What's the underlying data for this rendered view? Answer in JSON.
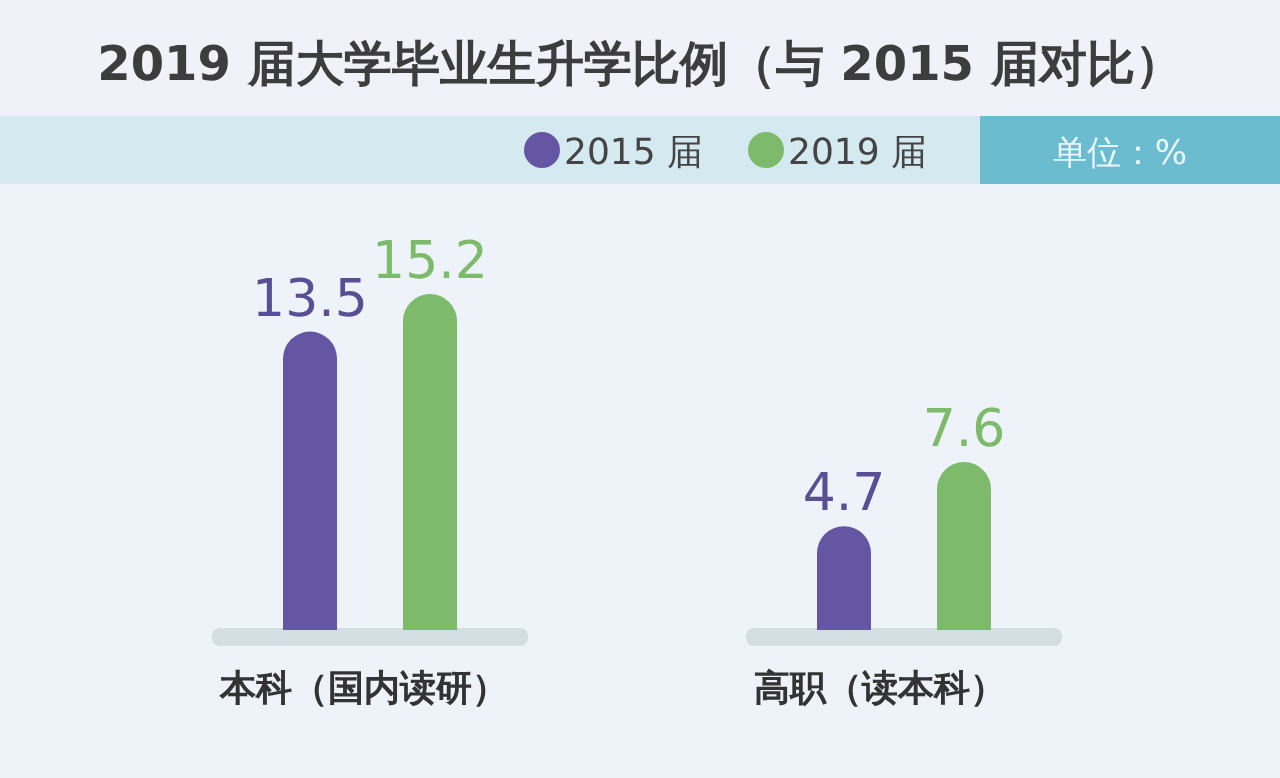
{
  "chart_data": {
    "type": "bar",
    "title": "2019 届大学毕业生升学比例（与 2015 届对比）",
    "categories": [
      "本科（国内读研）",
      "高职（读本科）"
    ],
    "series": [
      {
        "name": "2015 届",
        "color": "#6556a3",
        "values": [
          13.5,
          4.7
        ]
      },
      {
        "name": "2019 届",
        "color": "#7dba6c",
        "values": [
          15.2,
          7.6
        ]
      }
    ],
    "data_labels": true,
    "legend": "top right",
    "annotations": [
      "单位：%"
    ]
  }
}
